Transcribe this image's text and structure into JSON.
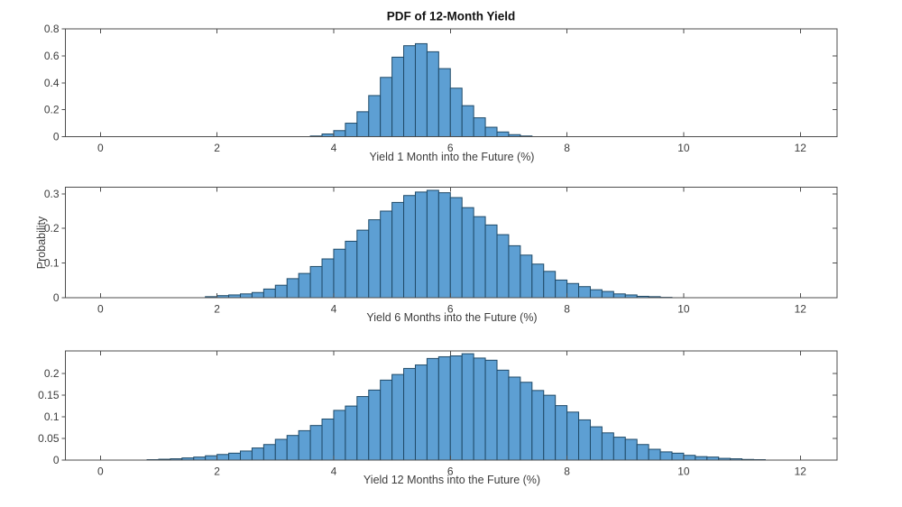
{
  "figure": {
    "background": "#ffffff"
  },
  "style": {
    "bar_face": "#5d9fd3",
    "bar_edge": "#1f4a68",
    "axis_color": "#4d4d4d",
    "tick_label_color": "#3c3c3c",
    "title_color": "#111111"
  },
  "chart_data": [
    {
      "type": "bar",
      "title": "PDF of 12-Month Yield",
      "xlabel": "Yield 1 Month into the Future (%)",
      "ylabel": "",
      "bin_start": 3.6,
      "bin_width": 0.2,
      "values": [
        0.005,
        0.02,
        0.045,
        0.1,
        0.185,
        0.305,
        0.44,
        0.59,
        0.675,
        0.69,
        0.63,
        0.505,
        0.36,
        0.23,
        0.14,
        0.07,
        0.035,
        0.015,
        0.005
      ],
      "xlim": [
        -0.6,
        12.63
      ],
      "ylim": [
        0,
        0.8
      ],
      "xticks": [
        0,
        2,
        4,
        6,
        8,
        10,
        12
      ],
      "yticks": [
        0,
        0.2,
        0.4,
        0.6,
        0.8
      ],
      "grid": false,
      "legend": null
    },
    {
      "type": "bar",
      "title": "",
      "xlabel": "Yield 6 Months into the Future (%)",
      "ylabel": "Probability",
      "bin_start": 1.8,
      "bin_width": 0.2,
      "values": [
        0.003,
        0.006,
        0.008,
        0.011,
        0.015,
        0.025,
        0.036,
        0.055,
        0.07,
        0.09,
        0.112,
        0.14,
        0.163,
        0.195,
        0.225,
        0.25,
        0.275,
        0.295,
        0.305,
        0.31,
        0.303,
        0.289,
        0.26,
        0.234,
        0.21,
        0.182,
        0.15,
        0.123,
        0.097,
        0.076,
        0.051,
        0.041,
        0.032,
        0.023,
        0.018,
        0.011,
        0.008,
        0.004,
        0.003,
        0.001
      ],
      "xlim": [
        -0.6,
        12.63
      ],
      "ylim": [
        0,
        0.319
      ],
      "xticks": [
        0,
        2,
        4,
        6,
        8,
        10,
        12
      ],
      "yticks": [
        0,
        0.1,
        0.2,
        0.3
      ],
      "grid": false,
      "legend": null
    },
    {
      "type": "bar",
      "title": "",
      "xlabel": "Yield 12 Months into the Future (%)",
      "ylabel": "",
      "bin_start": 0.8,
      "bin_width": 0.2,
      "values": [
        0.001,
        0.002,
        0.003,
        0.005,
        0.007,
        0.01,
        0.013,
        0.016,
        0.021,
        0.028,
        0.036,
        0.048,
        0.057,
        0.068,
        0.08,
        0.095,
        0.115,
        0.125,
        0.147,
        0.162,
        0.185,
        0.198,
        0.212,
        0.22,
        0.235,
        0.239,
        0.241,
        0.246,
        0.236,
        0.231,
        0.208,
        0.192,
        0.18,
        0.161,
        0.15,
        0.126,
        0.111,
        0.093,
        0.077,
        0.063,
        0.053,
        0.048,
        0.036,
        0.025,
        0.019,
        0.016,
        0.011,
        0.008,
        0.007,
        0.004,
        0.003,
        0.0015,
        0.001
      ],
      "xlim": [
        -0.6,
        12.63
      ],
      "ylim": [
        0,
        0.2525
      ],
      "xticks": [
        0,
        2,
        4,
        6,
        8,
        10,
        12
      ],
      "yticks": [
        0,
        0.05,
        0.1,
        0.15,
        0.2
      ],
      "grid": false,
      "legend": null
    }
  ]
}
